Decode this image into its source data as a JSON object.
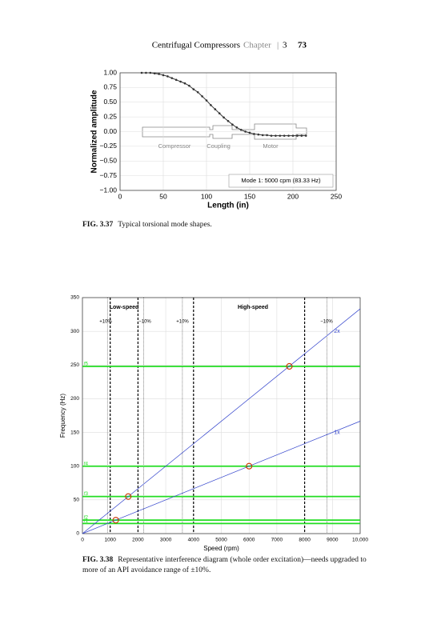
{
  "header": {
    "title": "Centrifugal Compressors",
    "chapter_word": "Chapter",
    "chapter": "3",
    "page": "73"
  },
  "captions": [
    {
      "label": "FIG. 3.37",
      "text": "Typical torsional mode shapes."
    },
    {
      "label": "FIG. 3.38",
      "text": "Representative interference diagram (whole order excitation)—needs upgraded to more of an API avoidance range of ±10%."
    }
  ],
  "chart_data": [
    {
      "type": "line",
      "x_label": "Length (in)",
      "y_label": "Normalized amplitude",
      "x": [
        25,
        30,
        35,
        40,
        45,
        50,
        55,
        60,
        65,
        70,
        75,
        80,
        85,
        90,
        95,
        100,
        105,
        110,
        115,
        120,
        125,
        130,
        135,
        140,
        145,
        150,
        155,
        160,
        165,
        170,
        175,
        180,
        185,
        190,
        195,
        200,
        205,
        210,
        215
      ],
      "series": [
        {
          "name": "Mode 1:  5000 cpm (83.33 Hz)",
          "color": "#333333",
          "values": [
            1.0,
            1.0,
            1.0,
            0.99,
            0.98,
            0.96,
            0.94,
            0.91,
            0.88,
            0.85,
            0.82,
            0.78,
            0.72,
            0.67,
            0.6,
            0.53,
            0.45,
            0.38,
            0.31,
            0.24,
            0.18,
            0.12,
            0.07,
            0.03,
            0.0,
            -0.02,
            -0.04,
            -0.05,
            -0.06,
            -0.06,
            -0.07,
            -0.07,
            -0.07,
            -0.07,
            -0.07,
            -0.07,
            -0.07,
            -0.07,
            -0.07
          ]
        }
      ],
      "annotations": [
        "Compressor",
        "Coupling",
        "Motor"
      ],
      "xlim": [
        0,
        250
      ],
      "xticks": [
        0,
        50,
        100,
        150,
        200,
        250
      ],
      "ylim": [
        -1,
        1
      ],
      "yticks": [
        {
          "value": 1,
          "label": "1.00"
        },
        {
          "value": 0.75,
          "label": "0.75"
        },
        {
          "value": 0.5,
          "label": "0.50"
        },
        {
          "value": 0.25,
          "label": "0.25"
        },
        {
          "value": 0,
          "label": "0.00"
        },
        {
          "value": -0.25,
          "label": "−0.25"
        },
        {
          "value": -0.5,
          "label": "−0.50"
        },
        {
          "value": -0.75,
          "label": "−0.75"
        },
        {
          "value": -1,
          "label": "−1.00"
        }
      ],
      "grid": true,
      "legend": "lower right"
    },
    {
      "type": "line",
      "x_label": "Speed (rpm)",
      "y_label": "Frequency (Hz)",
      "x": [
        0,
        10000
      ],
      "series": [
        {
          "name": "2x",
          "color": "#3344cc",
          "values": [
            0,
            333.3
          ]
        },
        {
          "name": "1x",
          "color": "#3344cc",
          "values": [
            0,
            166.7
          ]
        }
      ],
      "hlines": {
        "names": [
          "f1",
          "f2",
          "f3",
          "f4",
          "f5"
        ],
        "values": [
          15,
          20,
          55,
          100,
          248
        ],
        "color": "#22dd22"
      },
      "vlines_dashed": [
        1000,
        2000,
        4000,
        8000
      ],
      "vlines_dotted": [
        900,
        2200,
        3600,
        8800
      ],
      "points": {
        "x": [
          1200,
          1650,
          6000,
          7450
        ],
        "values": [
          20,
          55,
          100,
          248
        ],
        "color": "#cc3300"
      },
      "annotations": [
        "Low-speed",
        "High-speed",
        "+10%",
        "−10%",
        "+10%",
        "−10%"
      ],
      "xlim": [
        0,
        10000
      ],
      "xticks": [
        0,
        1000,
        2000,
        3000,
        4000,
        5000,
        6000,
        7000,
        8000,
        9000,
        {
          "value": 10000,
          "label": "10,000"
        }
      ],
      "ylim": [
        0,
        350
      ],
      "yticks": [
        0,
        50,
        100,
        150,
        200,
        250,
        300,
        350
      ],
      "grid": true,
      "legend": "on lines"
    }
  ]
}
